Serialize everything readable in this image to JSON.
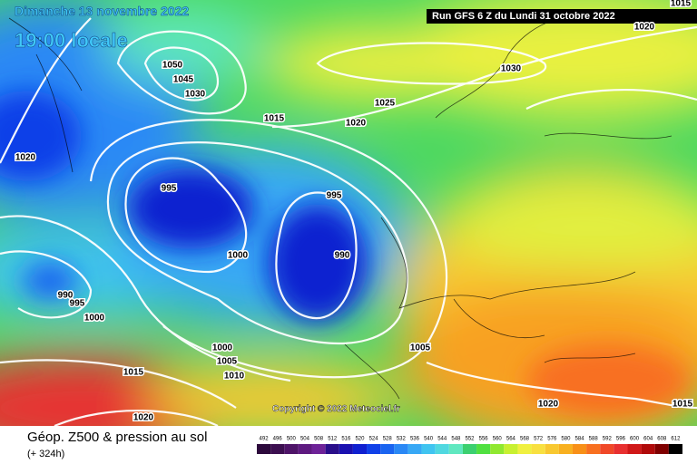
{
  "header": {
    "date": "Dimanche 13 novembre 2022",
    "time": "19:00 locale",
    "run": "Run GFS 6 Z du Lundi 31 octobre 2022"
  },
  "copyright": "Copyright © 2022 Meteociel.fr",
  "footer": {
    "title": "Géop. Z500 & pression au sol",
    "lead": "(+ 324h)"
  },
  "isobar_labels": [
    "1050",
    "1045",
    "1030",
    "1015",
    "1020",
    "1025",
    "1030",
    "1020",
    "995",
    "995",
    "1000",
    "990",
    "990",
    "995",
    "1000",
    "1000",
    "1005",
    "1010",
    "1015",
    "1005",
    "1020",
    "1015",
    "1020",
    "1020",
    "1015"
  ],
  "scale": [
    {
      "label": 492,
      "color": "#2d0a3c"
    },
    {
      "label": 496,
      "color": "#3c0f50"
    },
    {
      "label": 500,
      "color": "#4e1468"
    },
    {
      "label": 504,
      "color": "#5e1a80"
    },
    {
      "label": 508,
      "color": "#6e2298"
    },
    {
      "label": 512,
      "color": "#2a0e8a"
    },
    {
      "label": 516,
      "color": "#1a10b0"
    },
    {
      "label": 520,
      "color": "#1020d0"
    },
    {
      "label": 524,
      "color": "#1040e8"
    },
    {
      "label": 528,
      "color": "#1a64f0"
    },
    {
      "label": 532,
      "color": "#2a88f5"
    },
    {
      "label": 536,
      "color": "#38a8f5"
    },
    {
      "label": 540,
      "color": "#40c4f0"
    },
    {
      "label": 544,
      "color": "#50d8e0"
    },
    {
      "label": 548,
      "color": "#60e8c0"
    },
    {
      "label": 552,
      "color": "#3cd070"
    },
    {
      "label": 556,
      "color": "#50e040"
    },
    {
      "label": 560,
      "color": "#90e830"
    },
    {
      "label": 564,
      "color": "#c8f030"
    },
    {
      "label": 568,
      "color": "#f0f040"
    },
    {
      "label": 572,
      "color": "#f8e040"
    },
    {
      "label": 576,
      "color": "#f8c830"
    },
    {
      "label": 580,
      "color": "#f8b020"
    },
    {
      "label": 584,
      "color": "#f89018"
    },
    {
      "label": 588,
      "color": "#f87020"
    },
    {
      "label": 592,
      "color": "#f04828"
    },
    {
      "label": 596,
      "color": "#e83030"
    },
    {
      "label": 600,
      "color": "#d01818"
    },
    {
      "label": 604,
      "color": "#b00a0a"
    },
    {
      "label": 608,
      "color": "#800000"
    },
    {
      "label": 612,
      "color": "#000000"
    }
  ]
}
